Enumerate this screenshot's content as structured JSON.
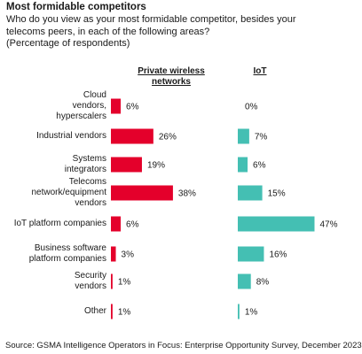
{
  "title": "Most formidable competitors",
  "subtitle": [
    "Who do you view as your most formidable competitor, besides your",
    "telecoms peers, in each of the following areas?",
    "(Percentage of respondents)"
  ],
  "source": "Source: GSMA Intelligence Operators in Focus: Enterprise Opportunity Survey, December 2023",
  "colors": {
    "private_wireless": "#e4002b",
    "iot": "#44bfb3",
    "text": "#1a1a1a"
  },
  "chart_data": {
    "type": "bar",
    "orientation": "horizontal",
    "title": "Most formidable competitors",
    "categories": [
      [
        "Cloud",
        "vendors,",
        "hyperscalers"
      ],
      [
        "Industrial vendors"
      ],
      [
        "Systems",
        "integrators"
      ],
      [
        "Telecoms",
        "network/equipment",
        "vendors"
      ],
      [
        "IoT platform companies"
      ],
      [
        "Business software",
        "platform companies"
      ],
      [
        "Security",
        "vendors"
      ],
      [
        "Other"
      ]
    ],
    "series": [
      {
        "name": [
          "Private wireless",
          "networks"
        ],
        "values": [
          6,
          26,
          19,
          38,
          6,
          3,
          1,
          1
        ],
        "labels": [
          "6%",
          "26%",
          "19%",
          "38%",
          "6%",
          "3%",
          "1%",
          "1%"
        ],
        "color": "#e4002b"
      },
      {
        "name": [
          "IoT"
        ],
        "values": [
          0,
          7,
          6,
          15,
          47,
          16,
          8,
          1
        ],
        "labels": [
          "0%",
          "7%",
          "6%",
          "15%",
          "47%",
          "16%",
          "8%",
          "1%"
        ],
        "color": "#44bfb3"
      }
    ],
    "unit": "%",
    "grid": false,
    "legend": "panel-titles"
  }
}
